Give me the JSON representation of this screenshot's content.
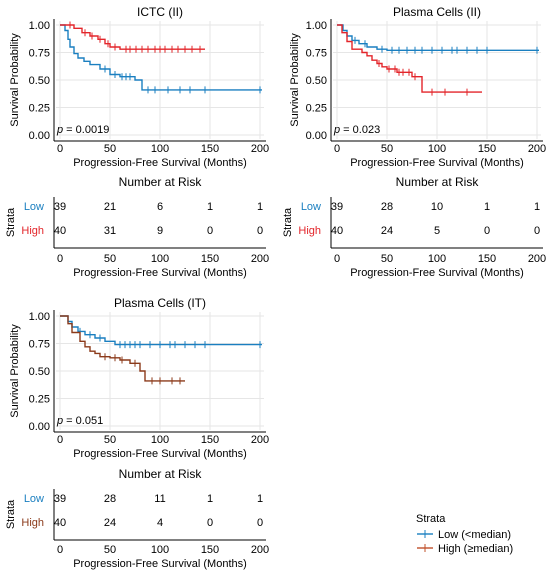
{
  "colors": {
    "low": "#1a7fc0",
    "high": "#e3252a",
    "high_it": "#8b3a1a",
    "grid": "#e6e6e6",
    "axis": "#000000"
  },
  "legend": {
    "title": "Strata",
    "items": [
      {
        "label": "Low (<median)",
        "color": "#1a7fc0"
      },
      {
        "label": "High (≥median)",
        "color": "#c0502a"
      }
    ]
  },
  "chart_data": [
    {
      "type": "line",
      "title": "ICTC (II)",
      "xlabel": "Progression-Free Survival (Months)",
      "ylabel": "Survival Probability",
      "xlim": [
        0,
        200
      ],
      "ylim": [
        0,
        1
      ],
      "xticks": [
        "0",
        "50",
        "100",
        "150",
        "200"
      ],
      "yticks": [
        "0.00",
        "0.25",
        "0.50",
        "0.75",
        "1.00"
      ],
      "p_value": "= 0.0019",
      "series": [
        {
          "name": "Low",
          "color": "#1a7fc0",
          "x": [
            0,
            5,
            8,
            10,
            14,
            18,
            24,
            30,
            40,
            50,
            60,
            75,
            82,
            202
          ],
          "y": [
            1.0,
            0.95,
            0.87,
            0.8,
            0.74,
            0.7,
            0.67,
            0.64,
            0.6,
            0.55,
            0.53,
            0.5,
            0.41,
            0.41
          ],
          "censor_x": [
            45,
            55,
            62,
            66,
            70,
            88,
            95,
            108,
            120,
            130,
            145,
            200
          ]
        },
        {
          "name": "High",
          "color": "#e3252a",
          "x": [
            0,
            14,
            22,
            30,
            38,
            45,
            50,
            60,
            145
          ],
          "y": [
            1.0,
            0.97,
            0.93,
            0.9,
            0.87,
            0.83,
            0.8,
            0.78,
            0.78
          ],
          "censor_x": [
            10,
            25,
            32,
            40,
            48,
            55,
            66,
            70,
            76,
            82,
            88,
            95,
            100,
            105,
            112,
            118,
            125,
            132,
            140
          ]
        }
      ],
      "risk_table": {
        "title": "Number at Risk",
        "strata_label": "Strata",
        "rows": [
          {
            "name": "Low",
            "values": [
              "39",
              "21",
              "6",
              "1",
              "1"
            ]
          },
          {
            "name": "High",
            "values": [
              "40",
              "31",
              "9",
              "0",
              "0"
            ]
          }
        ]
      }
    },
    {
      "type": "line",
      "title": "Plasma Cells (II)",
      "xlabel": "Progression-Free Survival (Months)",
      "ylabel": "Survival Probability",
      "xlim": [
        0,
        200
      ],
      "ylim": [
        0,
        1
      ],
      "xticks": [
        "0",
        "50",
        "100",
        "150",
        "200"
      ],
      "yticks": [
        "0.00",
        "0.25",
        "0.50",
        "0.75",
        "1.00"
      ],
      "p_value": "= 0.023",
      "series": [
        {
          "name": "Low",
          "color": "#1a7fc0",
          "x": [
            0,
            6,
            10,
            15,
            22,
            30,
            40,
            50,
            202
          ],
          "y": [
            1.0,
            0.95,
            0.9,
            0.86,
            0.83,
            0.8,
            0.78,
            0.77,
            0.77
          ],
          "censor_x": [
            18,
            28,
            45,
            55,
            62,
            70,
            78,
            85,
            95,
            105,
            115,
            120,
            130,
            140,
            150,
            200
          ]
        },
        {
          "name": "High",
          "color": "#e3252a",
          "x": [
            0,
            5,
            10,
            15,
            25,
            30,
            35,
            40,
            45,
            50,
            60,
            75,
            85,
            145
          ],
          "y": [
            1.0,
            0.93,
            0.85,
            0.78,
            0.75,
            0.72,
            0.68,
            0.65,
            0.62,
            0.6,
            0.57,
            0.53,
            0.39,
            0.39
          ],
          "censor_x": [
            42,
            52,
            58,
            62,
            66,
            72,
            78,
            95,
            108,
            130
          ]
        }
      ],
      "risk_table": {
        "title": "Number at Risk",
        "strata_label": "Strata",
        "rows": [
          {
            "name": "Low",
            "values": [
              "39",
              "28",
              "10",
              "1",
              "1"
            ]
          },
          {
            "name": "High",
            "values": [
              "40",
              "24",
              "5",
              "0",
              "0"
            ]
          }
        ]
      }
    },
    {
      "type": "line",
      "title": "Plasma Cells (IT)",
      "xlabel": "Progression-Free Survival (Months)",
      "ylabel": "Survival Probability",
      "xlim": [
        0,
        200
      ],
      "ylim": [
        0,
        1
      ],
      "xticks": [
        "0",
        "50",
        "100",
        "150",
        "200"
      ],
      "yticks": [
        "0.00",
        "0.25",
        "0.50",
        "0.75",
        "1.00"
      ],
      "p_value": "= 0.051",
      "series": [
        {
          "name": "Low",
          "color": "#1a7fc0",
          "x": [
            0,
            8,
            12,
            18,
            25,
            35,
            45,
            55,
            202
          ],
          "y": [
            1.0,
            0.95,
            0.9,
            0.86,
            0.83,
            0.8,
            0.77,
            0.74,
            0.74
          ],
          "censor_x": [
            20,
            30,
            40,
            60,
            65,
            70,
            75,
            80,
            90,
            100,
            110,
            115,
            125,
            135,
            145,
            200
          ]
        },
        {
          "name": "High",
          "color": "#8b3a1a",
          "x": [
            0,
            8,
            12,
            20,
            25,
            30,
            35,
            40,
            50,
            60,
            70,
            80,
            85,
            125
          ],
          "y": [
            1.0,
            0.93,
            0.85,
            0.77,
            0.72,
            0.68,
            0.66,
            0.63,
            0.62,
            0.6,
            0.57,
            0.5,
            0.41,
            0.41
          ],
          "censor_x": [
            45,
            55,
            62,
            75,
            92,
            100,
            112,
            120
          ]
        }
      ],
      "risk_table": {
        "title": "Number at Risk",
        "strata_label": "Strata",
        "rows": [
          {
            "name": "Low",
            "values": [
              "39",
              "28",
              "11",
              "1",
              "1"
            ]
          },
          {
            "name": "High",
            "values": [
              "40",
              "24",
              "4",
              "0",
              "0"
            ]
          }
        ]
      }
    }
  ]
}
